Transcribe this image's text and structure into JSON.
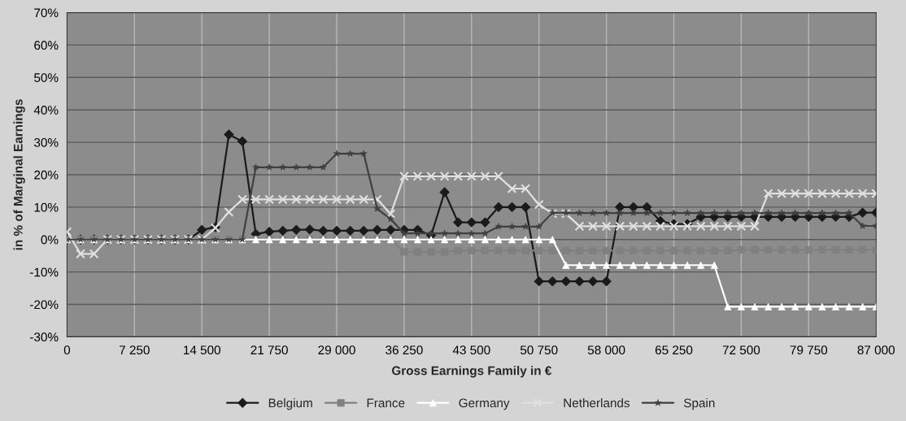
{
  "chart_data": {
    "type": "line",
    "xlabel": "Gross Earnings Family in €",
    "ylabel": "in % of Marginal Earnings",
    "x": [
      0,
      1450,
      2900,
      4350,
      5800,
      7250,
      8700,
      10150,
      11600,
      13050,
      14500,
      15950,
      17400,
      18850,
      20300,
      21750,
      23200,
      24650,
      26100,
      27550,
      29000,
      30450,
      31900,
      33350,
      34800,
      36250,
      37700,
      39150,
      40600,
      42050,
      43500,
      44950,
      46400,
      47850,
      49300,
      50750,
      52200,
      53650,
      55100,
      56550,
      58000,
      59450,
      60900,
      62350,
      63800,
      65250,
      66700,
      68150,
      69600,
      71050,
      72500,
      73950,
      75400,
      76850,
      78300,
      79750,
      81200,
      82650,
      84100,
      85550,
      87000
    ],
    "series": [
      {
        "name": "Belgium",
        "color": "#1a1a1a",
        "marker": "diamond",
        "values": [
          0,
          0,
          0,
          0,
          0,
          0,
          0,
          0,
          0,
          0,
          3.0,
          3.8,
          32.4,
          30.3,
          1.7,
          2.4,
          2.7,
          3.0,
          3.1,
          2.7,
          2.7,
          2.7,
          2.7,
          3.0,
          3.0,
          3.0,
          3.0,
          1.3,
          14.6,
          5.3,
          5.3,
          5.3,
          10.0,
          10.0,
          10.0,
          -12.9,
          -12.9,
          -12.9,
          -12.9,
          -12.9,
          -12.9,
          10.0,
          10.0,
          10.0,
          5.7,
          4.8,
          4.8,
          7.0,
          7.0,
          7.0,
          7.0,
          7.0,
          7.0,
          7.0,
          7.0,
          7.0,
          7.0,
          7.0,
          7.0,
          8.3,
          8.3
        ]
      },
      {
        "name": "France",
        "color": "#808080",
        "marker": "square",
        "values": [
          0,
          0,
          0,
          0,
          0,
          0,
          0,
          0,
          0,
          0,
          0,
          0,
          0,
          0,
          0,
          0,
          0,
          0,
          0,
          0,
          0,
          0,
          0,
          0,
          0,
          -3.8,
          -3.8,
          -3.8,
          -3.8,
          -3.4,
          -3.4,
          -3.4,
          -3.4,
          -3.4,
          -3.4,
          -3.4,
          -3.4,
          -3.4,
          -3.4,
          -3.4,
          -3.4,
          -3.4,
          -3.4,
          -3.4,
          -3.4,
          -3.4,
          -3.4,
          -3.4,
          -3.4,
          -3.4,
          -3.2,
          -3.2,
          -3.2,
          -3.2,
          -3.2,
          -3.2,
          -3.2,
          -3.2,
          -3.2,
          -3.2,
          -3.2
        ]
      },
      {
        "name": "Germany",
        "color": "#ffffff",
        "marker": "triangle",
        "values": [
          0,
          0,
          0,
          0,
          0,
          0,
          0,
          0,
          0,
          0,
          0,
          0,
          0,
          0,
          0,
          0,
          0,
          0,
          0,
          0,
          0,
          0,
          0,
          0,
          0,
          0,
          0,
          0,
          0,
          0,
          0,
          0,
          0,
          0,
          0,
          0,
          0,
          -7.9,
          -7.9,
          -7.9,
          -7.9,
          -7.9,
          -7.9,
          -7.9,
          -7.9,
          -7.9,
          -7.9,
          -7.9,
          -7.9,
          -20.7,
          -20.7,
          -20.7,
          -20.7,
          -20.7,
          -20.7,
          -20.7,
          -20.7,
          -20.7,
          -20.7,
          -20.7,
          -20.7
        ]
      },
      {
        "name": "Netherlands",
        "color": "#e0e0e0",
        "marker": "cross",
        "values": [
          2.4,
          -4.4,
          -4.4,
          0,
          0,
          0,
          0,
          0,
          0,
          0,
          0,
          3.6,
          8.5,
          12.4,
          12.4,
          12.4,
          12.4,
          12.4,
          12.4,
          12.4,
          12.4,
          12.4,
          12.4,
          12.4,
          7.9,
          19.5,
          19.5,
          19.5,
          19.5,
          19.5,
          19.5,
          19.5,
          19.5,
          15.7,
          15.7,
          10.8,
          8.0,
          8.0,
          4.1,
          4.1,
          4.1,
          4.1,
          4.1,
          4.1,
          4.1,
          4.1,
          4.1,
          4.1,
          4.1,
          4.1,
          4.1,
          4.1,
          14.2,
          14.2,
          14.2,
          14.2,
          14.2,
          14.2,
          14.2,
          14.2,
          14.2
        ]
      },
      {
        "name": "Spain",
        "color": "#404040",
        "marker": "star",
        "values": [
          0,
          0,
          0,
          0,
          0,
          0,
          0,
          0,
          0,
          0,
          0,
          0,
          0,
          0,
          22.3,
          22.3,
          22.3,
          22.3,
          22.3,
          22.3,
          26.5,
          26.5,
          26.5,
          9.5,
          6.3,
          1.9,
          1.9,
          1.9,
          1.9,
          1.9,
          1.9,
          1.9,
          4.0,
          4.0,
          4.0,
          4.0,
          8.2,
          8.2,
          8.2,
          8.2,
          8.2,
          8.2,
          8.2,
          8.2,
          8.2,
          8.2,
          8.2,
          8.2,
          8.2,
          8.2,
          8.2,
          8.2,
          8.2,
          8.2,
          8.2,
          8.2,
          8.2,
          8.2,
          8.2,
          4.2,
          4.2
        ]
      }
    ],
    "xlim": [
      0,
      87000
    ],
    "xticks": [
      0,
      {
        "value": 7250,
        "label": "7 250"
      },
      {
        "value": 14500,
        "label": "14 500"
      },
      {
        "value": 21750,
        "label": "21 750"
      },
      {
        "value": 29000,
        "label": "29 000"
      },
      {
        "value": 36250,
        "label": "36 250"
      },
      {
        "value": 43500,
        "label": "43 500"
      },
      {
        "value": 50750,
        "label": "50 750"
      },
      {
        "value": 58000,
        "label": "58 000"
      },
      {
        "value": 65250,
        "label": "65 250"
      },
      {
        "value": 72500,
        "label": "72 500"
      },
      {
        "value": 79750,
        "label": "79 750"
      },
      {
        "value": 87000,
        "label": "87 000"
      }
    ],
    "ylim": [
      -30,
      70
    ],
    "yticks": [
      {
        "value": -30,
        "label": "-30%"
      },
      {
        "value": -20,
        "label": "-20%"
      },
      {
        "value": -10,
        "label": "-10%"
      },
      {
        "value": 0,
        "label": "0%"
      },
      {
        "value": 10,
        "label": "10%"
      },
      {
        "value": 20,
        "label": "20%"
      },
      {
        "value": 30,
        "label": "30%"
      },
      {
        "value": 40,
        "label": "40%"
      },
      {
        "value": 50,
        "label": "50%"
      },
      {
        "value": 60,
        "label": "60%"
      },
      {
        "value": 70,
        "label": "70%"
      }
    ],
    "grid": true,
    "legend": "bottom"
  }
}
